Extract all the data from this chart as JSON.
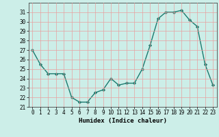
{
  "x": [
    0,
    1,
    2,
    3,
    4,
    5,
    6,
    7,
    8,
    9,
    10,
    11,
    12,
    13,
    14,
    15,
    16,
    17,
    18,
    19,
    20,
    21,
    22,
    23
  ],
  "y": [
    27,
    25.5,
    24.5,
    24.5,
    24.5,
    22,
    21.5,
    21.5,
    22.5,
    22.8,
    24,
    23.3,
    23.5,
    23.5,
    25,
    27.5,
    30.3,
    31,
    31,
    31.2,
    30.2,
    29.5,
    25.5,
    23.3
  ],
  "line_color": "#1a7a6e",
  "marker": "D",
  "marker_size": 2.2,
  "bg_color": "#cceee8",
  "grid_color": "#e8a0a0",
  "xlabel": "Humidex (Indice chaleur)",
  "ylim": [
    21,
    32
  ],
  "xlim": [
    -0.5,
    23.5
  ],
  "yticks": [
    21,
    22,
    23,
    24,
    25,
    26,
    27,
    28,
    29,
    30,
    31
  ],
  "xticks": [
    0,
    1,
    2,
    3,
    4,
    5,
    6,
    7,
    8,
    9,
    10,
    11,
    12,
    13,
    14,
    15,
    16,
    17,
    18,
    19,
    20,
    21,
    22,
    23
  ],
  "axis_fontsize": 6.5,
  "tick_fontsize": 5.5,
  "linewidth": 1.0
}
